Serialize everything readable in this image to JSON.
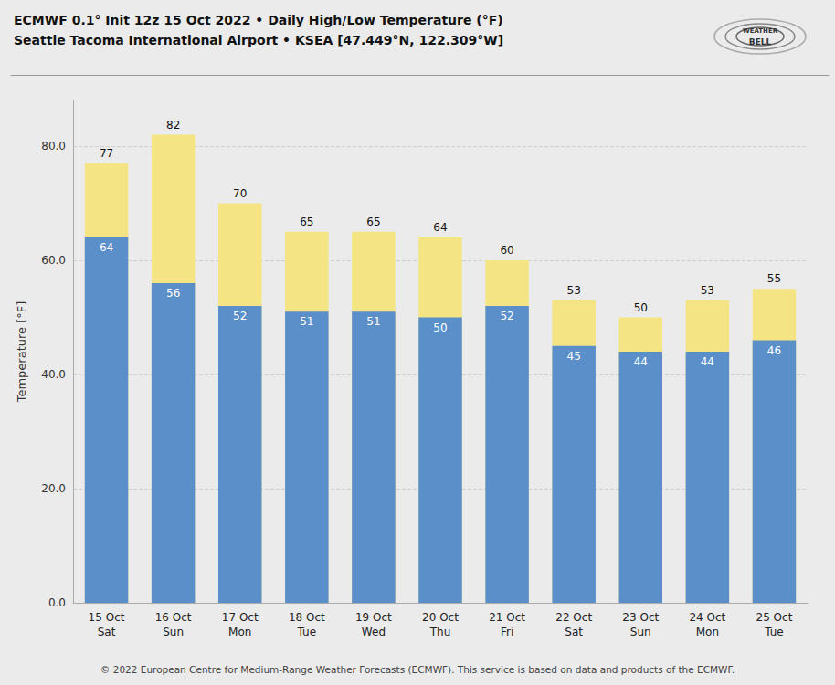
{
  "chart_data": {
    "type": "bar",
    "title": "ECMWF 0.1° Init 12z 15 Oct 2022 • Daily High/Low Temperature (°F)",
    "subtitle": "Seattle Tacoma International Airport • KSEA [47.449°N, 122.309°W]",
    "annotations": [
      "© 2022 European Centre for Medium-Range Weather Forecasts (ECMWF). This service is based on data and products of the ECMWF.",
      "WEATHER",
      "BELL"
    ],
    "categories": [
      "15 Oct\nSat",
      "16 Oct\nSun",
      "17 Oct\nMon",
      "18 Oct\nTue",
      "19 Oct\nWed",
      "20 Oct\nThu",
      "21 Oct\nFri",
      "22 Oct\nSat",
      "23 Oct\nSun",
      "24 Oct\nMon",
      "25 Oct\nTue"
    ],
    "series": [
      {
        "color": "#f5e484",
        "values": [
          77,
          82,
          70,
          65,
          65,
          64,
          60,
          53,
          50,
          53,
          55
        ]
      },
      {
        "color": "#5b8fc9",
        "values": [
          64,
          56,
          52,
          51,
          51,
          50,
          52,
          45,
          44,
          44,
          46
        ]
      }
    ],
    "ylabel": "Temperature [°F]",
    "ylim": [
      0,
      88
    ],
    "yticks": [
      {
        "value": 0,
        "label": "0.0"
      },
      {
        "value": 20,
        "label": "20.0"
      },
      {
        "value": 40,
        "label": "40.0"
      },
      {
        "value": 60,
        "label": "60.0"
      },
      {
        "value": 80,
        "label": "80.0"
      }
    ],
    "grid": true,
    "data_labels": true
  }
}
